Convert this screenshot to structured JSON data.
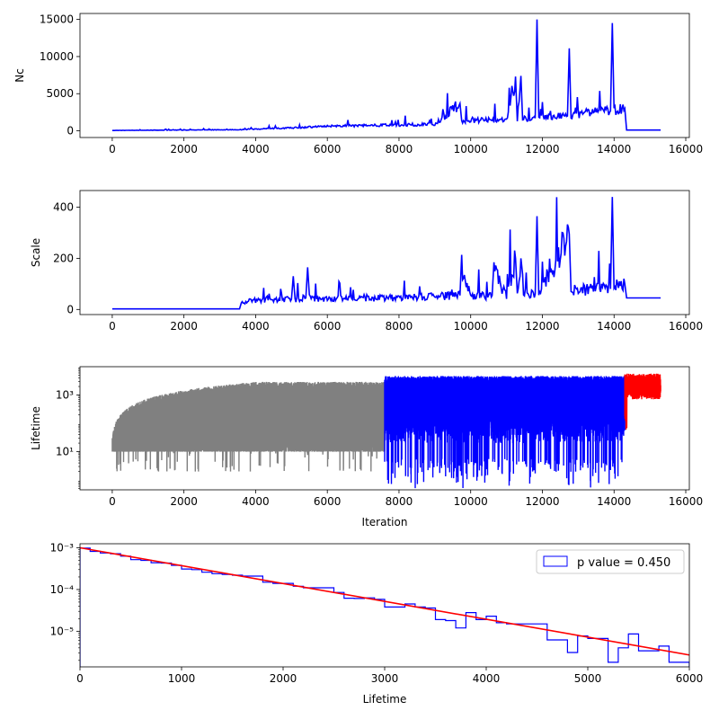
{
  "chart_data": [
    {
      "type": "line",
      "ylabel": "Nc",
      "xlim": [
        -900,
        16100
      ],
      "ylim": [
        -900,
        15800
      ],
      "xticks": [
        0,
        2000,
        4000,
        6000,
        8000,
        10000,
        12000,
        14000,
        16000
      ],
      "xtick_labels": [
        "0",
        "2000",
        "4000",
        "6000",
        "8000",
        "10000",
        "12000",
        "14000",
        "16000"
      ],
      "yticks": [
        0,
        5000,
        10000,
        15000
      ],
      "ytick_labels": [
        "0",
        "5000",
        "10000",
        "15000"
      ],
      "series_color": "#0000ff",
      "series": [
        {
          "x": [
            0,
            3500,
            5000,
            6000,
            7000,
            8000,
            9000,
            9700,
            9750,
            10000,
            11000,
            11250,
            11300,
            11400,
            11450,
            11800,
            11850,
            11900,
            12700,
            12750,
            12800,
            13500,
            13900,
            13950,
            14000,
            14300,
            14350,
            15300
          ],
          "y": [
            50,
            150,
            400,
            600,
            700,
            800,
            900,
            3700,
            1200,
            1400,
            1500,
            7300,
            1500,
            7400,
            1600,
            1700,
            15000,
            1800,
            2000,
            11100,
            2000,
            2600,
            2700,
            14500,
            2800,
            3000,
            100,
            100
          ]
        }
      ]
    },
    {
      "type": "line",
      "ylabel": "Scale",
      "xlim": [
        -900,
        16100
      ],
      "ylim": [
        -20,
        465
      ],
      "xticks": [
        0,
        2000,
        4000,
        6000,
        8000,
        10000,
        12000,
        14000,
        16000
      ],
      "xtick_labels": [
        "0",
        "2000",
        "4000",
        "6000",
        "8000",
        "10000",
        "12000",
        "14000",
        "16000"
      ],
      "yticks": [
        0,
        200,
        400
      ],
      "ytick_labels": [
        "0",
        "200",
        "400"
      ],
      "series_color": "#0000ff",
      "series": [
        {
          "x": [
            0,
            3550,
            3600,
            4000,
            5000,
            5050,
            5100,
            5400,
            5450,
            5500,
            6000,
            7000,
            8000,
            9000,
            9700,
            9750,
            10000,
            10600,
            10650,
            11000,
            11250,
            11300,
            11400,
            11450,
            11800,
            11850,
            11900,
            12750,
            12800,
            12850,
            13900,
            13950,
            14000,
            14300,
            14350,
            15300
          ],
          "y": [
            2,
            2,
            30,
            35,
            40,
            130,
            40,
            45,
            165,
            45,
            40,
            45,
            45,
            50,
            55,
            165,
            50,
            55,
            145,
            55,
            200,
            55,
            200,
            55,
            60,
            365,
            60,
            295,
            70,
            75,
            80,
            440,
            90,
            100,
            45,
            45
          ]
        }
      ]
    },
    {
      "type": "line",
      "ylabel": "Lifetime",
      "xlabel": "Iteration",
      "yscale": "log",
      "xlim": [
        -900,
        16100
      ],
      "ylim": [
        0.45,
        10000
      ],
      "xticks": [
        0,
        2000,
        4000,
        6000,
        8000,
        10000,
        12000,
        14000,
        16000
      ],
      "xtick_labels": [
        "0",
        "2000",
        "4000",
        "6000",
        "8000",
        "10000",
        "12000",
        "14000",
        "16000"
      ],
      "yticks": [
        10,
        1000
      ],
      "ytick_labels": [
        "10¹",
        "10³"
      ],
      "segments": [
        {
          "color": "#808080",
          "x_range": [
            0,
            7600
          ]
        },
        {
          "color": "#0000ff",
          "x_range": [
            7600,
            14300
          ]
        },
        {
          "color": "#ff0000",
          "x_range": [
            14300,
            15300
          ]
        }
      ]
    },
    {
      "type": "histogram",
      "xlabel": "Lifetime",
      "yscale": "log",
      "xlim": [
        0,
        6000
      ],
      "ylim": [
        1.4e-06,
        0.00125
      ],
      "xticks": [
        0,
        1000,
        2000,
        3000,
        4000,
        5000,
        6000
      ],
      "xtick_labels": [
        "0",
        "1000",
        "2000",
        "3000",
        "4000",
        "5000",
        "6000"
      ],
      "yticks": [
        1e-05,
        0.0001,
        0.001
      ],
      "ytick_labels": [
        "10⁻⁵",
        "10⁻⁴",
        "10⁻³"
      ],
      "legend": {
        "label": "p value = 0.450",
        "position": "upper-right"
      },
      "hist_color": "#0000ff",
      "fit_color": "#ff0000",
      "bin_edges": [
        0,
        100,
        200,
        300,
        400,
        500,
        600,
        700,
        800,
        900,
        1000,
        1100,
        1200,
        1300,
        1400,
        1500,
        1600,
        1700,
        1800,
        1900,
        2000,
        2100,
        2200,
        2300,
        2400,
        2500,
        2600,
        2700,
        2800,
        2900,
        3000,
        3100,
        3200,
        3300,
        3400,
        3500,
        3600,
        3700,
        3800,
        3900,
        4000,
        4100,
        4200,
        4300,
        4400,
        4500,
        4600,
        4700,
        4800,
        4900,
        5000,
        5100,
        5200,
        5300,
        5400,
        5500,
        5600,
        5700,
        5800,
        5900,
        6000
      ],
      "counts": [
        0.00098,
        0.00082,
        0.00075,
        0.00072,
        0.00063,
        0.00052,
        0.0005,
        0.00044,
        0.00043,
        0.00038,
        0.00031,
        0.0003,
        0.00026,
        0.00024,
        0.00023,
        0.00022,
        0.00021,
        0.00021,
        0.00015,
        0.00014,
        0.00014,
        0.00012,
        0.00011,
        0.00011,
        0.00011,
        8.5e-05,
        6.2e-05,
        6.1e-05,
        6.3e-05,
        5.8e-05,
        3.8e-05,
        3.8e-05,
        4.5e-05,
        3.8e-05,
        3.6e-05,
        1.9e-05,
        1.8e-05,
        1.2e-05,
        2.8e-05,
        1.9e-05,
        2.3e-05,
        1.6e-05,
        1.5e-05,
        1.5e-05,
        1.5e-05,
        1.5e-05,
        6.2e-06,
        6.2e-06,
        3.1e-06,
        7.7e-06,
        6.7e-06,
        6.7e-06,
        1.8e-06,
        4e-06,
        8.6e-06,
        3.4e-06,
        3.4e-06,
        4.4e-06,
        1.8e-06,
        1.8e-06
      ],
      "fit": {
        "type": "exponential",
        "x": [
          0,
          6000
        ],
        "y": [
          0.001,
          2.7e-06
        ]
      }
    }
  ]
}
